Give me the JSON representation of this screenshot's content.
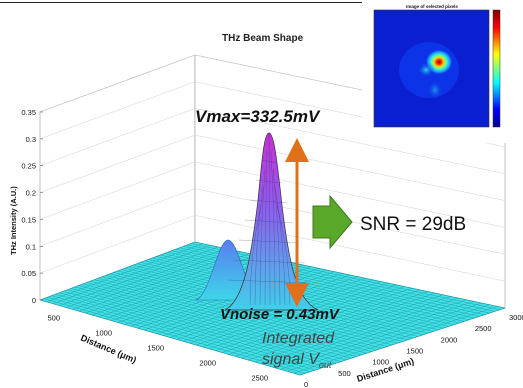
{
  "chart_data": {
    "type": "surface3d",
    "title": "THz Beam Shape",
    "zlabel": "THz Intensity (A.U.)",
    "xlabel": "Distance (μm)",
    "ylabel": "Distance (μm)",
    "z_ticks": [
      "0",
      "0.05",
      "0.1",
      "0.15",
      "0.2",
      "0.25",
      "0.3",
      "0.35"
    ],
    "x_ticks": [
      "500",
      "1000",
      "1500",
      "2000",
      "2500"
    ],
    "y_ticks": [
      "0",
      "500",
      "1000",
      "1500",
      "2000",
      "2500",
      "3000"
    ],
    "zlim": [
      0,
      0.35
    ],
    "peaks": [
      {
        "x_um": 1800,
        "y_um": 1300,
        "height": 0.3
      },
      {
        "x_um": 1450,
        "y_um": 1350,
        "height": 0.11
      }
    ],
    "colors": {
      "surface_base": "#35e0e6",
      "surface_mid": "#5f7df0",
      "surface_peak": "#d433d8",
      "arrow": "#e0701a",
      "snr_arrow": "#5aa82a"
    }
  },
  "annotations": {
    "vmax": "Vmax=332.5mV",
    "vnoise": "Vnoise = 0.43mV",
    "integrated_line1": "Integrated",
    "integrated_line2": "signal V",
    "integrated_sub": "out",
    "snr": "SNR = 29dB"
  },
  "inset": {
    "title": "Image of selected pixels",
    "type": "heatmap",
    "colormap": "jet"
  }
}
